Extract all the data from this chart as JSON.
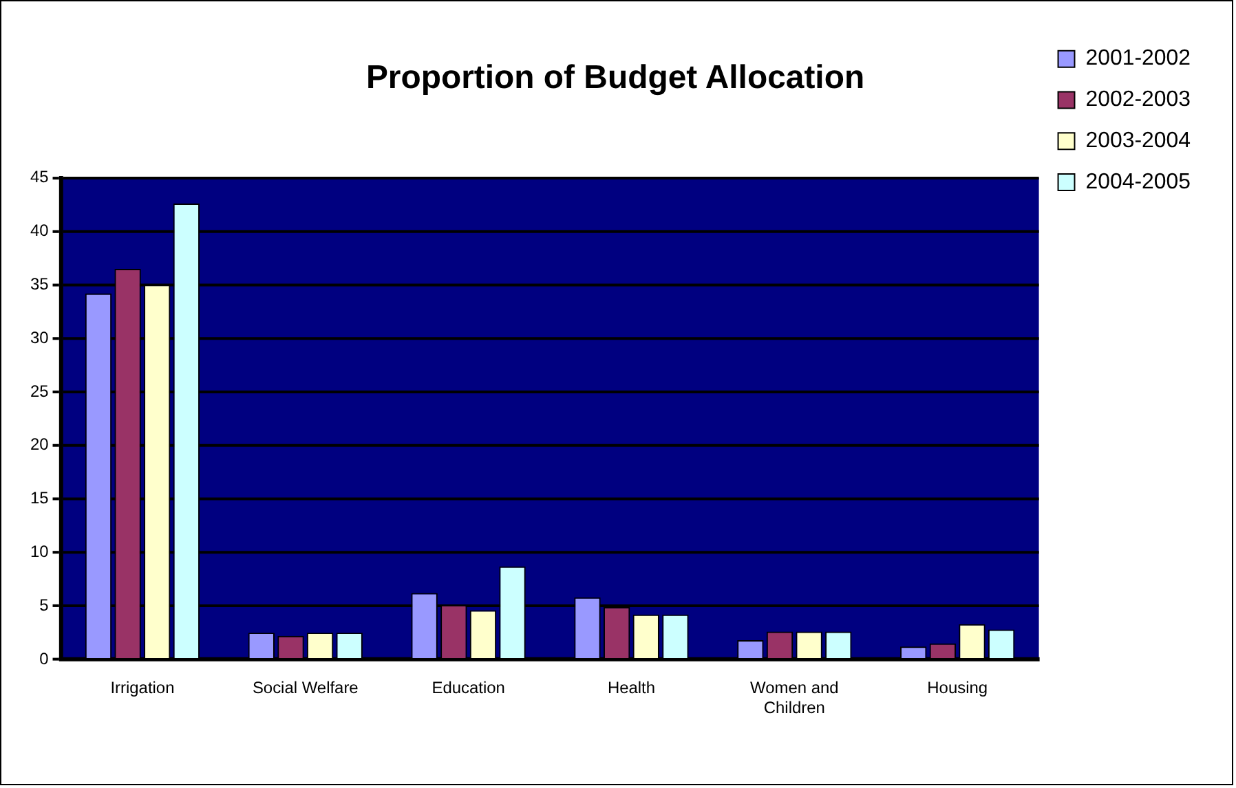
{
  "chart_data": {
    "type": "bar",
    "title": "Proportion of Budget Allocation",
    "categories": [
      "Irrigation",
      "Social Welfare",
      "Education",
      "Health",
      "Women and Children",
      "Housing"
    ],
    "series": [
      {
        "name": "2001-2002",
        "color": "#9999ff",
        "values": [
          34.2,
          2.5,
          6.2,
          5.8,
          1.8,
          1.2
        ]
      },
      {
        "name": "2002-2003",
        "color": "#993366",
        "values": [
          36.5,
          2.2,
          5.1,
          4.9,
          2.6,
          1.5
        ]
      },
      {
        "name": "2003-2004",
        "color": "#ffffcc",
        "values": [
          35,
          2.5,
          4.6,
          4.2,
          2.6,
          3.3
        ]
      },
      {
        "name": "2004-2005",
        "color": "#ccffff",
        "values": [
          42.6,
          2.5,
          8.7,
          4.2,
          2.6,
          2.8
        ]
      }
    ],
    "ylim": [
      0,
      45
    ],
    "yticks": [
      0,
      5,
      10,
      15,
      20,
      25,
      30,
      35,
      40,
      45
    ],
    "grid": "y",
    "legend": "top right"
  }
}
